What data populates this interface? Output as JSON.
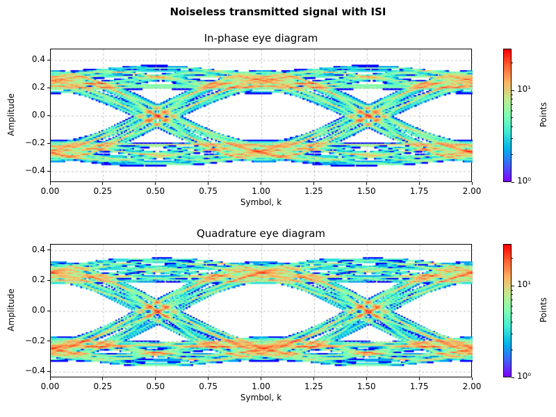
{
  "suptitle": "Noiseless transmitted signal with ISI",
  "chart_data": [
    {
      "type": "heatmap",
      "title": "In-phase eye diagram",
      "xlabel": "Symbol, k",
      "ylabel": "Amplitude",
      "xlim": [
        0,
        2
      ],
      "ylim": [
        -0.48,
        0.48
      ],
      "xticks": [
        "0.00",
        "0.25",
        "0.50",
        "0.75",
        "1.00",
        "1.25",
        "1.50",
        "1.75",
        "2.00"
      ],
      "yticks": [
        "−0.4",
        "−0.2",
        "0.0",
        "0.2",
        "0.4"
      ],
      "grid": true,
      "colormap": "rainbow",
      "color_scale": "log",
      "colorbar": {
        "label": "Points",
        "range": [
          1,
          28
        ],
        "ticks": [
          "10⁰",
          "10¹"
        ]
      },
      "symbol_levels": [
        -0.25,
        0.25
      ],
      "peak_amplitude": 0.45
    },
    {
      "type": "heatmap",
      "title": "Quadrature eye diagram",
      "xlabel": "Symbol, k",
      "ylabel": "Amplitude",
      "xlim": [
        0,
        2
      ],
      "ylim": [
        -0.44,
        0.44
      ],
      "xticks": [
        "0.00",
        "0.25",
        "0.50",
        "0.75",
        "1.00",
        "1.25",
        "1.50",
        "1.75",
        "2.00"
      ],
      "yticks": [
        "−0.4",
        "−0.2",
        "0.0",
        "0.2",
        "0.4"
      ],
      "grid": true,
      "colormap": "rainbow",
      "color_scale": "log",
      "colorbar": {
        "label": "Points",
        "range": [
          1,
          25
        ],
        "ticks": [
          "10⁰",
          "10¹"
        ]
      },
      "symbol_levels": [
        -0.25,
        0.25
      ],
      "peak_amplitude": 0.43
    }
  ]
}
